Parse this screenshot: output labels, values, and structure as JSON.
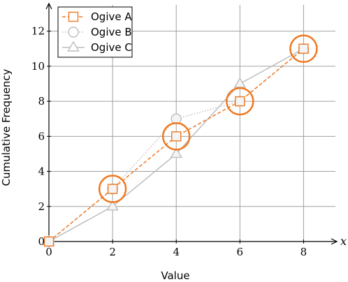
{
  "chart_data": {
    "type": "line",
    "title": "",
    "xlabel": "Value",
    "ylabel": "Cumulative Frequency",
    "x_axis_var": "x",
    "xlim": [
      0,
      9
    ],
    "ylim": [
      0,
      13.5
    ],
    "x_ticks": [
      0,
      2,
      4,
      6,
      8
    ],
    "y_ticks": [
      0,
      2,
      4,
      6,
      8,
      10,
      12
    ],
    "x_tick_labels": [
      "0",
      "2",
      "4",
      "6",
      "8"
    ],
    "y_tick_labels": [
      "0",
      "2",
      "4",
      "6",
      "8",
      "10",
      "12"
    ],
    "grid": true,
    "legend_position": "top-left",
    "series": [
      {
        "name": "Ogive A",
        "marker": "square",
        "line_style": "dashed",
        "color": "#f07820",
        "x": [
          0,
          2,
          4,
          6,
          8
        ],
        "y": [
          0,
          3,
          6,
          8,
          11
        ],
        "highlighted": [
          false,
          true,
          true,
          true,
          true
        ]
      },
      {
        "name": "Ogive B",
        "marker": "circle",
        "line_style": "dotted",
        "color": "#bdbdbd",
        "x": [
          0,
          2,
          4,
          6,
          8
        ],
        "y": [
          0,
          3,
          7,
          8,
          11
        ]
      },
      {
        "name": "Ogive C",
        "marker": "triangle",
        "line_style": "solid",
        "color": "#bdbdbd",
        "x": [
          0,
          2,
          4,
          6,
          8
        ],
        "y": [
          0,
          2,
          5,
          9,
          11
        ]
      }
    ]
  }
}
